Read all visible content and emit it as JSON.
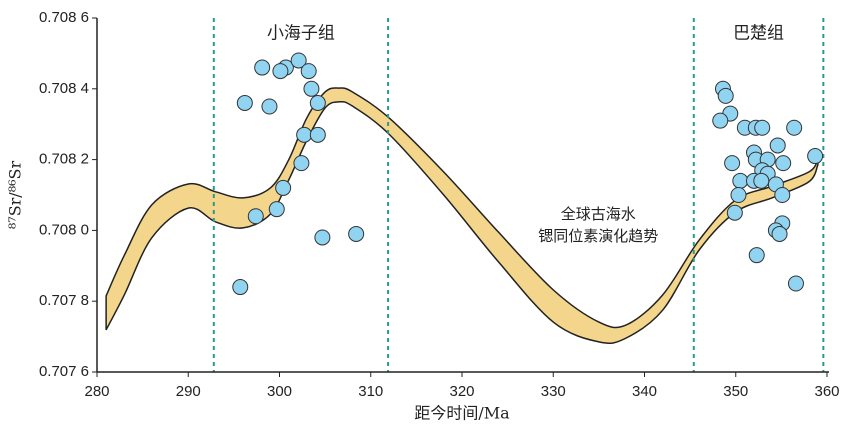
{
  "chart_data": {
    "type": "scatter",
    "x_label": "距今时间/Ma",
    "y_label": "⁸⁷Sr/⁸⁶Sr",
    "xlim": [
      280,
      360
    ],
    "xticks": [
      280,
      290,
      300,
      310,
      320,
      330,
      340,
      350,
      360
    ],
    "ylim": [
      0.7076,
      0.7086
    ],
    "yticks": [
      {
        "value": 0.7076,
        "label": "0.707 6"
      },
      {
        "value": 0.7078,
        "label": "0.707 8"
      },
      {
        "value": 0.708,
        "label": "0.708 0"
      },
      {
        "value": 0.7082,
        "label": "0.708 2"
      },
      {
        "value": 0.7084,
        "label": "0.708 4"
      },
      {
        "value": 0.7086,
        "label": "0.708 6"
      }
    ],
    "color": "#91d4f2",
    "x": [
      298.1,
      300.7,
      300.1,
      302.1,
      303.2,
      296.2,
      298.9,
      303.5,
      304.2,
      302.7,
      304.2,
      302.4,
      300.4,
      297.4,
      299.7,
      304.7,
      308.4,
      295.7,
      348.6,
      348.9,
      349.4,
      348.3,
      351.0,
      352.2,
      352.9,
      356.4,
      354.6,
      349.6,
      352.0,
      352.2,
      353.5,
      355.2,
      350.5,
      352.9,
      353.5,
      354.4,
      355.1,
      350.3,
      352.0,
      352.8,
      358.7,
      349.9,
      355.1,
      354.4,
      352.3,
      356.6,
      354.8
    ],
    "values": [
      0.70846,
      0.70846,
      0.70845,
      0.70848,
      0.70845,
      0.70836,
      0.70835,
      0.7084,
      0.70836,
      0.70827,
      0.70827,
      0.70819,
      0.70812,
      0.70804,
      0.70806,
      0.70798,
      0.70799,
      0.70784,
      0.7084,
      0.70838,
      0.70833,
      0.70831,
      0.70829,
      0.70829,
      0.70829,
      0.70829,
      0.70824,
      0.70819,
      0.70822,
      0.7082,
      0.7082,
      0.70819,
      0.70814,
      0.70817,
      0.70816,
      0.70813,
      0.7081,
      0.7081,
      0.70814,
      0.70814,
      0.70821,
      0.70805,
      0.70802,
      0.708,
      0.70793,
      0.70785,
      0.70799
    ],
    "band": {
      "label": [
        "全球古海水",
        "锶同位素演化趋势"
      ],
      "color": "#f3d68c",
      "x": [
        281,
        283,
        286,
        290,
        293,
        296,
        299,
        301,
        303,
        305,
        306.5,
        308,
        312,
        318,
        324,
        330,
        335,
        338,
        342,
        346,
        350,
        354,
        358,
        359
      ],
      "upper": [
        0.707815,
        0.70793,
        0.708072,
        0.708131,
        0.708109,
        0.708092,
        0.70812,
        0.708199,
        0.708318,
        0.708391,
        0.708402,
        0.708391,
        0.708318,
        0.708165,
        0.707995,
        0.707832,
        0.707741,
        0.707733,
        0.707818,
        0.707973,
        0.708086,
        0.708125,
        0.708165,
        0.708199
      ],
      "lower": [
        0.707719,
        0.707818,
        0.707979,
        0.708063,
        0.708024,
        0.708007,
        0.708046,
        0.708142,
        0.708255,
        0.708346,
        0.708363,
        0.708351,
        0.708272,
        0.7081,
        0.707911,
        0.707741,
        0.707685,
        0.707696,
        0.707775,
        0.707945,
        0.708052,
        0.708092,
        0.708137,
        0.708185
      ]
    },
    "boundaries": [
      292.8,
      311.9,
      345.4,
      359.6
    ],
    "boundary_color": "#2a9a8c",
    "formations": [
      "小海子组",
      "巴楚组"
    ]
  }
}
